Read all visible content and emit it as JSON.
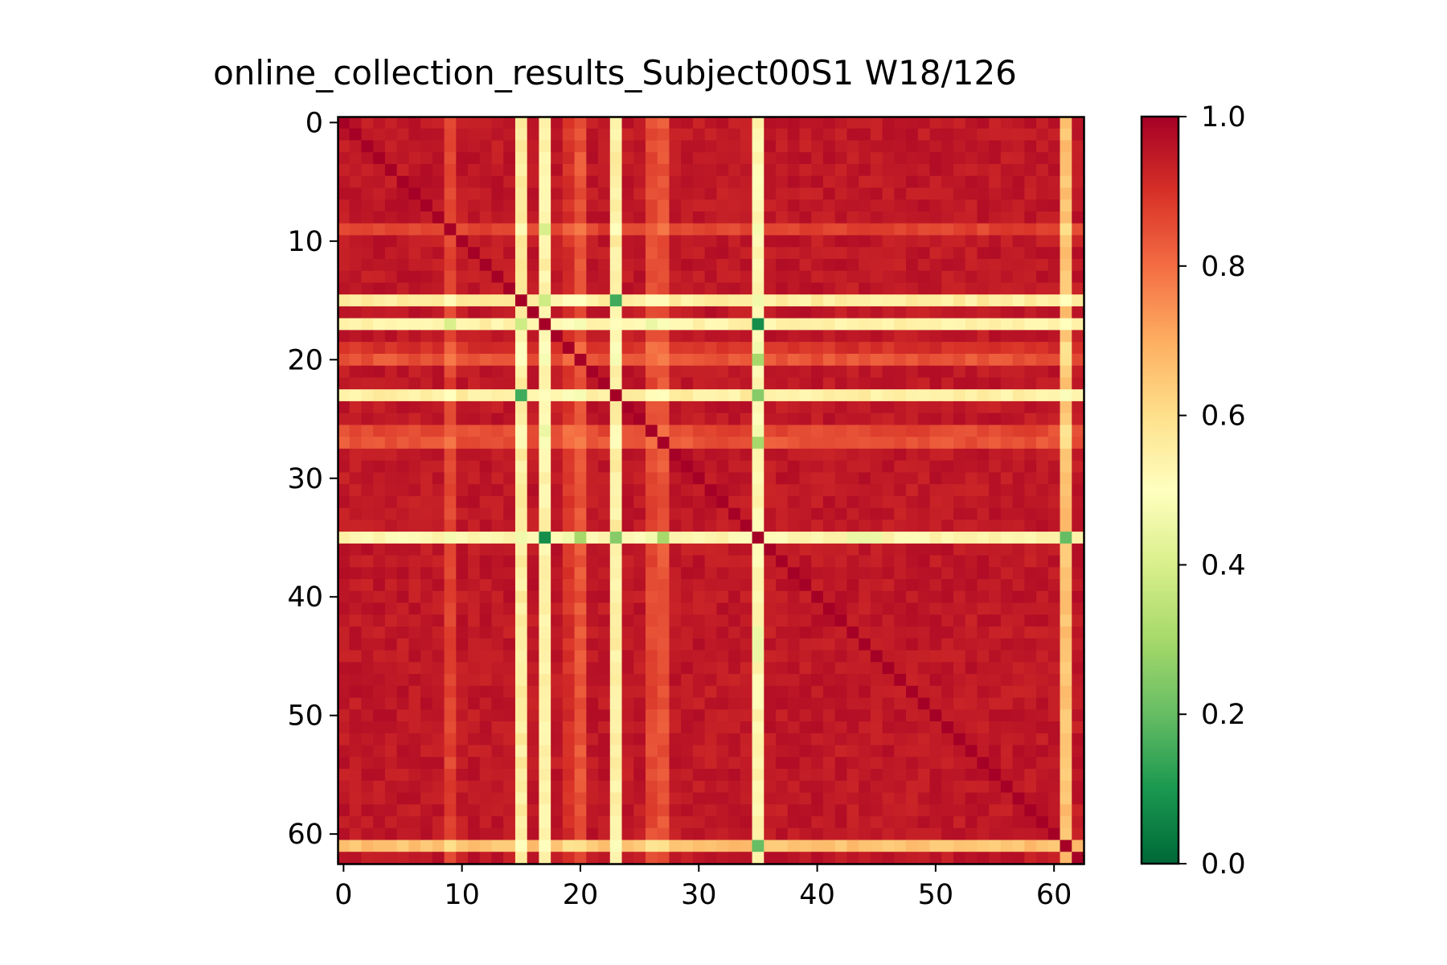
{
  "chart_data": {
    "type": "heatmap",
    "title": "online_collection_results_Subject00S1 W18/126",
    "xlabel": "",
    "ylabel": "",
    "n_rows": 63,
    "n_cols": 63,
    "x_ticks": [
      0,
      10,
      20,
      30,
      40,
      50,
      60
    ],
    "y_ticks": [
      0,
      10,
      20,
      30,
      40,
      50,
      60
    ],
    "x_tick_labels": [
      "0",
      "10",
      "20",
      "30",
      "40",
      "50",
      "60"
    ],
    "y_tick_labels": [
      "0",
      "10",
      "20",
      "30",
      "40",
      "50",
      "60"
    ],
    "colorbar": {
      "range": [
        0.0,
        1.0
      ],
      "ticks": [
        0.0,
        0.2,
        0.4,
        0.6,
        0.8,
        1.0
      ],
      "tick_labels": [
        "0.0",
        "0.2",
        "0.4",
        "0.6",
        "0.8",
        "1.0"
      ],
      "colormap": "RdYlGn_r",
      "colormap_stops": [
        "#006837",
        "#1a9850",
        "#66bd63",
        "#a6d96a",
        "#d9ef8b",
        "#ffffbf",
        "#fee08b",
        "#fdae61",
        "#f46d43",
        "#d73027",
        "#a50026"
      ]
    },
    "diagonal_value": 1.0,
    "base_value": 0.95,
    "channel_values": {
      "9": 0.87,
      "15": 0.56,
      "17": 0.54,
      "19": 0.9,
      "20": 0.84,
      "23": 0.55,
      "26": 0.86,
      "27": 0.84,
      "35": 0.53,
      "61": 0.66
    },
    "special_cells": [
      [
        15,
        23,
        0.15
      ],
      [
        17,
        35,
        0.08
      ],
      [
        15,
        17,
        0.38
      ],
      [
        9,
        17,
        0.4
      ],
      [
        23,
        35,
        0.25
      ],
      [
        35,
        61,
        0.2
      ],
      [
        27,
        35,
        0.3
      ],
      [
        20,
        35,
        0.3
      ],
      [
        35,
        43,
        0.45
      ],
      [
        35,
        44,
        0.45
      ],
      [
        35,
        45,
        0.45
      ],
      [
        17,
        26,
        0.45
      ],
      [
        15,
        20,
        0.5
      ],
      [
        9,
        61,
        0.6
      ]
    ],
    "grid": false,
    "legend": "colorbar-right"
  }
}
